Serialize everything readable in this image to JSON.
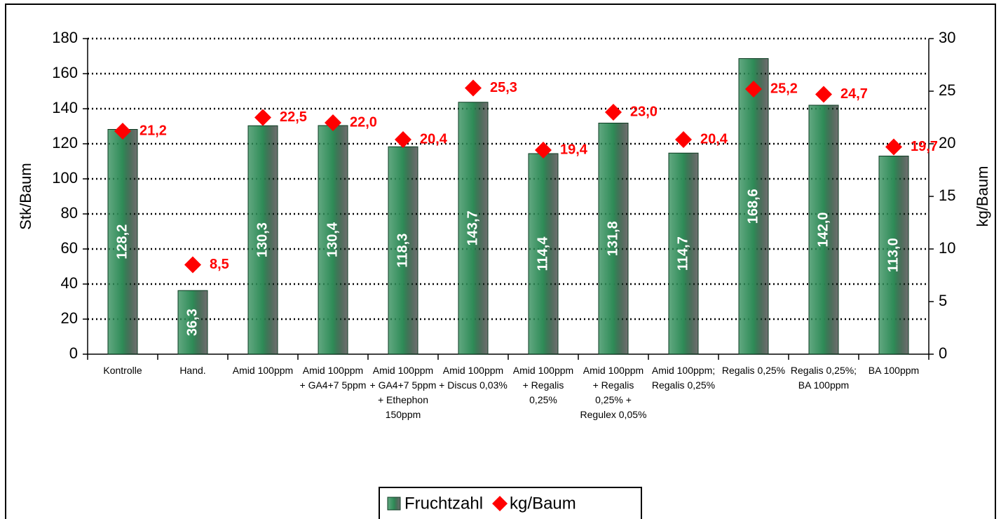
{
  "chart_data": {
    "type": "bar",
    "categories": [
      "Kontrolle",
      "Hand.",
      "Amid 100ppm",
      "Amid 100ppm + GA4+7 5ppm",
      "Amid 100ppm + GA4+7 5ppm + Ethephon 150ppm",
      "Amid 100ppm + Discus 0,03%",
      "Amid 100ppm + Regalis 0,25%",
      "Amid 100ppm + Regalis 0,25% + Regulex 0,05%",
      "Amid 100ppm; Regalis 0,25%",
      "Regalis 0,25%",
      "Regalis 0,25%; BA 100ppm",
      "BA 100ppm"
    ],
    "series": [
      {
        "name": "Fruchtzahl",
        "type": "bar",
        "color": "#2e8b57",
        "values": [
          128.2,
          36.3,
          130.3,
          130.4,
          118.3,
          143.7,
          114.4,
          131.8,
          114.7,
          168.6,
          142.0,
          113.0
        ],
        "value_labels": [
          "128,2",
          "36,3",
          "130,3",
          "130,4",
          "118,3",
          "143,7",
          "114,4",
          "131,8",
          "114,7",
          "168,6",
          "142,0",
          "113,0"
        ]
      },
      {
        "name": "kg/Baum",
        "type": "scatter",
        "axis": "y2",
        "color": "#ff0000",
        "values": [
          21.2,
          8.5,
          22.5,
          22.0,
          20.4,
          25.3,
          19.4,
          23.0,
          20.4,
          25.2,
          24.7,
          19.7
        ],
        "value_labels": [
          "21,2",
          "8,5",
          "22,5",
          "22,0",
          "20,4",
          "25,3",
          "19,4",
          "23,0",
          "20,4",
          "25,2",
          "24,7",
          "19,7"
        ]
      }
    ],
    "ylabel": "Stk/Baum",
    "y2label": "kg/Baum",
    "ylim": [
      0,
      180
    ],
    "yticks": [
      0,
      20,
      40,
      60,
      80,
      100,
      120,
      140,
      160,
      180
    ],
    "y2lim": [
      0,
      30
    ],
    "y2ticks": [
      0,
      5,
      10,
      15,
      20,
      25,
      30
    ],
    "grid": true,
    "legend": "bottom"
  }
}
